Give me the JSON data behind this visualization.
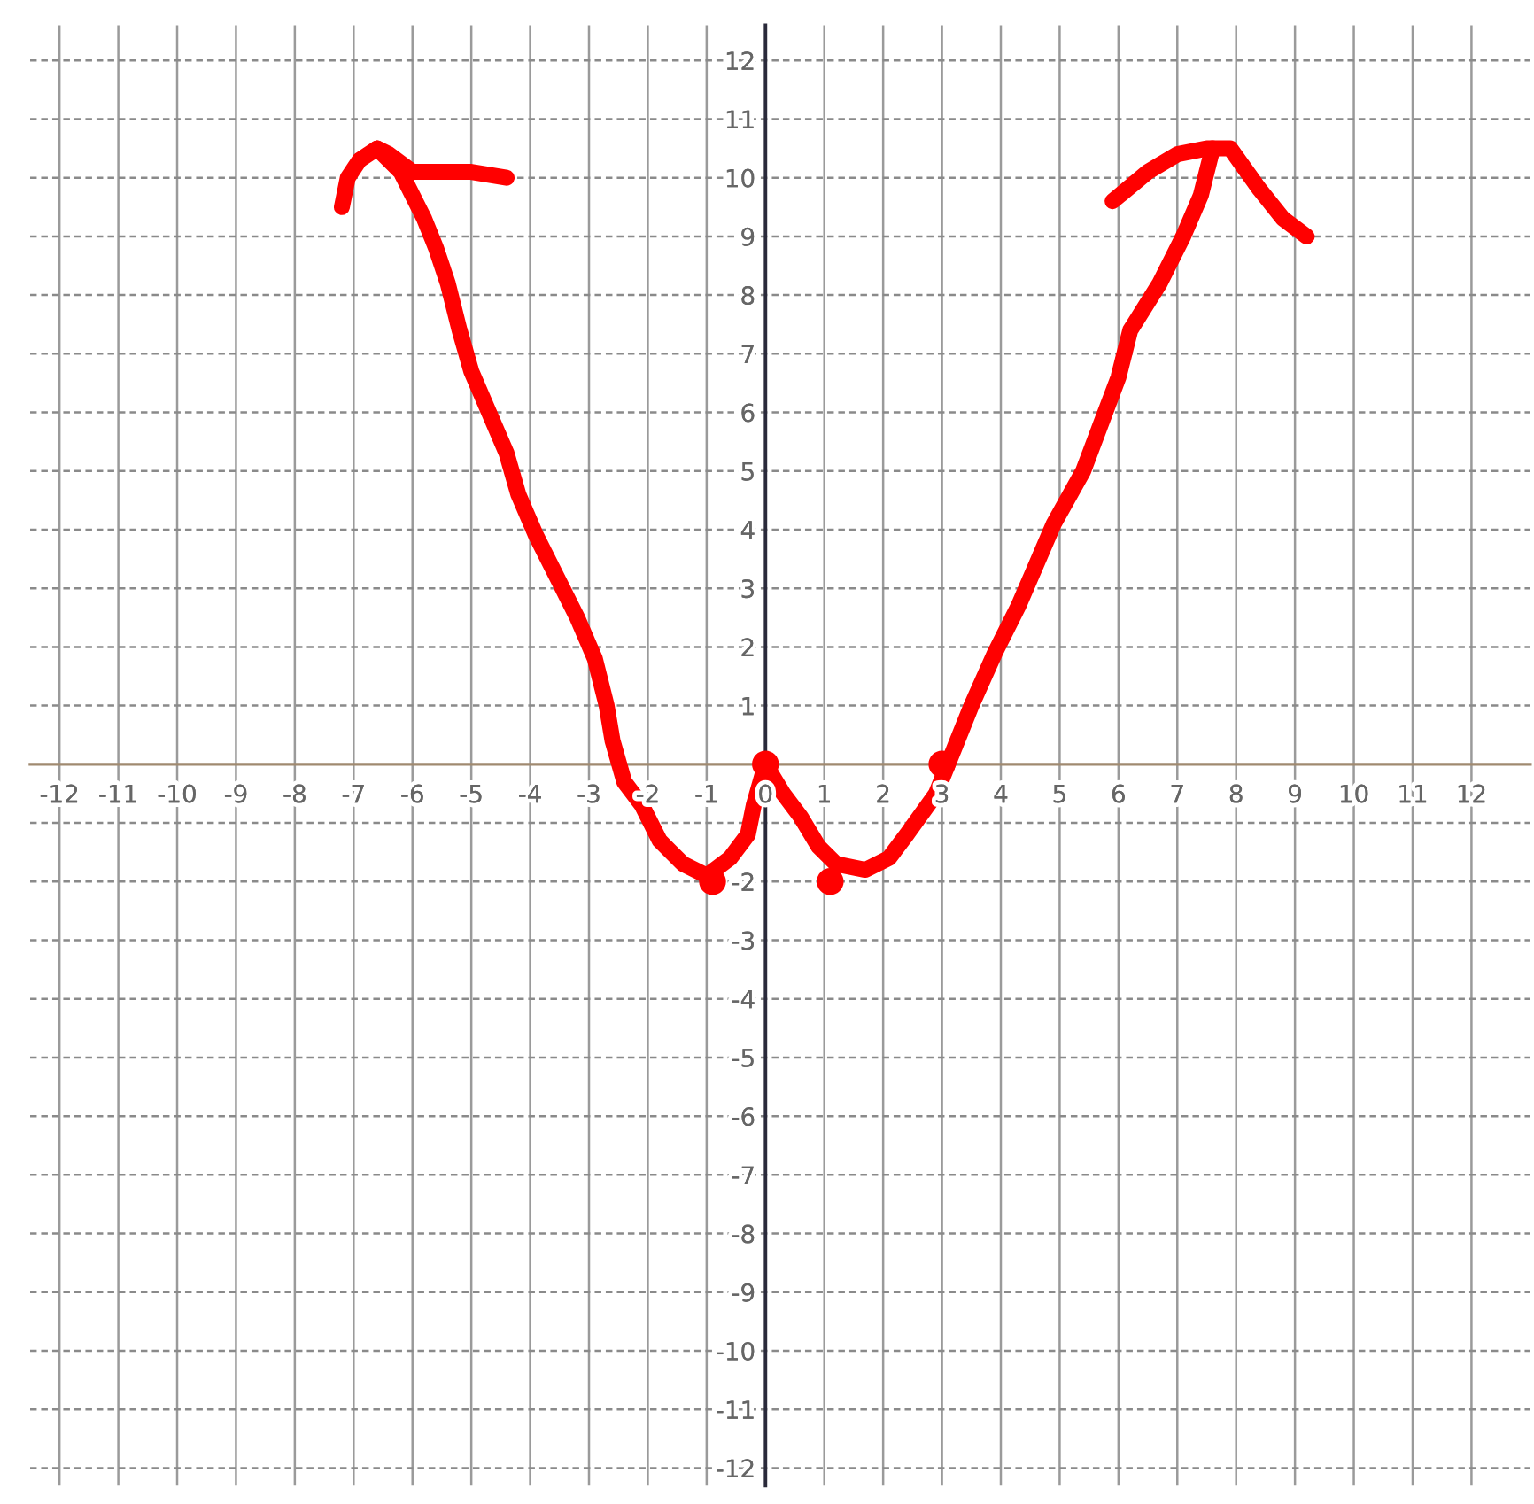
{
  "chart_data": {
    "type": "line",
    "xlim": [
      -12.5,
      13
    ],
    "ylim": [
      -12.3,
      12.6
    ],
    "xticks": [
      -12,
      -11,
      -10,
      -9,
      -8,
      -7,
      -6,
      -5,
      -4,
      -3,
      -2,
      -1,
      0,
      1,
      2,
      3,
      4,
      5,
      6,
      7,
      8,
      9,
      10,
      11,
      12
    ],
    "yticks": [
      -12,
      -11,
      -10,
      -9,
      -8,
      -7,
      -6,
      -5,
      -4,
      -3,
      -2,
      {
        "value": -1,
        "label": null
      },
      1,
      2,
      3,
      4,
      5,
      6,
      7,
      8,
      9,
      10,
      11,
      12
    ],
    "grid": true,
    "series": [
      {
        "color": "#ff0000",
        "x": [
          -6.6,
          -6.2,
          -5.8,
          -5.6,
          -5.4,
          -5.2,
          -5.0,
          -4.7,
          -4.4,
          -4.2,
          -3.9,
          -3.5,
          -3.2,
          -2.9,
          -2.7,
          -2.6,
          -2.4,
          -2.1,
          -1.8,
          -1.4,
          -1.0,
          -0.6,
          -0.3,
          -0.2,
          0,
          0.3,
          0.6,
          0.9,
          1.2,
          1.7,
          2.1,
          2.4,
          2.9,
          3.1,
          3.5,
          3.9,
          4.3,
          4.6,
          4.9,
          5.4,
          5.7,
          6.0,
          6.2,
          6.7,
          7.1,
          7.4,
          7.6
        ],
        "values": [
          10.5,
          10.1,
          9.3,
          8.8,
          8.2,
          7.4,
          6.7,
          6.0,
          5.3,
          4.6,
          3.9,
          3.1,
          2.5,
          1.8,
          1.0,
          0.4,
          -0.3,
          -0.7,
          -1.3,
          -1.7,
          -1.9,
          -1.6,
          -1.2,
          -0.7,
          0,
          -0.5,
          -0.9,
          -1.4,
          -1.7,
          -1.8,
          -1.6,
          -1.2,
          -0.5,
          0,
          1.0,
          1.9,
          2.7,
          3.4,
          4.1,
          5.0,
          5.8,
          6.6,
          7.4,
          8.2,
          9.0,
          9.7,
          10.5
        ]
      },
      {
        "color": "#ff0000",
        "x": [
          -7.2,
          -7.1,
          -6.9,
          -6.6,
          -6.4,
          -6.0,
          -5.0,
          -4.4
        ],
        "values": [
          9.5,
          10.0,
          10.3,
          10.5,
          10.4,
          10.1,
          10.1,
          10.0
        ]
      },
      {
        "color": "#ff0000",
        "x": [
          5.9,
          6.5,
          7.0,
          7.5,
          7.9,
          8.4,
          8.8,
          9.2
        ],
        "values": [
          9.6,
          10.1,
          10.4,
          10.5,
          10.5,
          9.8,
          9.3,
          9.0
        ]
      },
      {
        "type": "scatter",
        "color": "#ff0000",
        "marker": "circle",
        "x": [
          -0.9,
          0,
          1.1,
          3
        ],
        "values": [
          -2,
          0,
          -2,
          0
        ]
      }
    ]
  }
}
